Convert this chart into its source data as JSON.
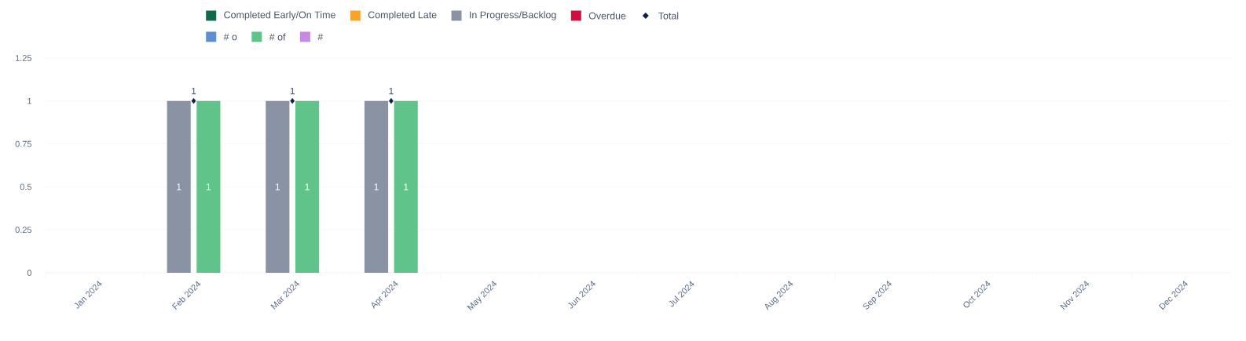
{
  "chart_data": {
    "type": "bar",
    "categories": [
      "Jan 2024",
      "Feb 2024",
      "Mar 2024",
      "Apr 2024",
      "May 2024",
      "Jun 2024",
      "Jul 2024",
      "Aug 2024",
      "Sep 2024",
      "Oct 2024",
      "Nov 2024",
      "Dec 2024"
    ],
    "series": [
      {
        "name": "Completed Early/On Time",
        "color": "#12694a",
        "values": [
          null,
          null,
          null,
          null,
          null,
          null,
          null,
          null,
          null,
          null,
          null,
          null
        ]
      },
      {
        "name": "Completed Late",
        "color": "#f7a42c",
        "values": [
          null,
          null,
          null,
          null,
          null,
          null,
          null,
          null,
          null,
          null,
          null,
          null
        ]
      },
      {
        "name": "In Progress/Backlog",
        "color": "#8a93a4",
        "values": [
          null,
          1,
          1,
          1,
          null,
          null,
          null,
          null,
          null,
          null,
          null,
          null
        ]
      },
      {
        "name": "Overdue",
        "color": "#d10d3e",
        "values": [
          null,
          null,
          null,
          null,
          null,
          null,
          null,
          null,
          null,
          null,
          null,
          null
        ]
      },
      {
        "name": "Total",
        "type": "scatter",
        "marker": "diamond",
        "color": "#0e1f45",
        "values": [
          null,
          1,
          1,
          1,
          null,
          null,
          null,
          null,
          null,
          null,
          null,
          null
        ]
      },
      {
        "name": "# o",
        "color": "#5e8fd1",
        "values": [
          null,
          null,
          null,
          null,
          null,
          null,
          null,
          null,
          null,
          null,
          null,
          null
        ]
      },
      {
        "name": "# of",
        "color": "#60c48a",
        "values": [
          null,
          1,
          1,
          1,
          null,
          null,
          null,
          null,
          null,
          null,
          null,
          null
        ]
      },
      {
        "name": "#",
        "color": "#c68ae0",
        "values": [
          null,
          null,
          null,
          null,
          null,
          null,
          null,
          null,
          null,
          null,
          null,
          null
        ]
      }
    ],
    "ylim": [
      0,
      1.25
    ],
    "yticks": [
      0,
      0.25,
      0.5,
      0.75,
      1,
      1.25
    ],
    "grid": "y",
    "legend": "top",
    "data_labels": true
  }
}
